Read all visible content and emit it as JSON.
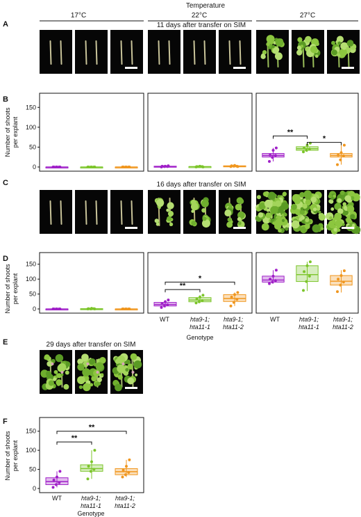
{
  "header": {
    "title": "Temperature",
    "temps": [
      "17°C",
      "22°C",
      "27°C"
    ]
  },
  "panels": {
    "A": "A",
    "B": "B",
    "C": "C",
    "D": "D",
    "E": "E",
    "F": "F"
  },
  "rows": {
    "A_title": "11 days after transfer on SIM",
    "C_title": "16 days after transfer on SIM",
    "E_title": "29 days after transfer on SIM"
  },
  "axis": {
    "ylabel_1": "Number of shoots",
    "ylabel_2": "per explant",
    "yticks": [
      "0",
      "50",
      "100",
      "150"
    ],
    "xlabel": "Genotype",
    "genotypes": [
      {
        "l1": "WT",
        "l2": ""
      },
      {
        "l1": "hta9-1;",
        "l2": "hta11-1"
      },
      {
        "l1": "hta9-1;",
        "l2": "hta11-2"
      }
    ]
  },
  "significance": {
    "double": "**",
    "single": "*"
  },
  "colors": {
    "WT": "#a020c8",
    "hta11_1": "#7cc52a",
    "hta11_2": "#f0961e"
  },
  "chart_data": [
    {
      "type": "box",
      "panel": "B",
      "temperature": "17°C",
      "categories": [
        "WT",
        "hta9-1; hta11-1",
        "hta9-1; hta11-2"
      ],
      "ylabel": "Number of shoots per explant",
      "ylim": [
        0,
        175
      ],
      "boxes": [
        {
          "min": 0,
          "q1": 0,
          "median": 0,
          "q3": 0,
          "max": 0,
          "points": [
            0,
            0,
            0,
            0,
            0,
            0
          ]
        },
        {
          "min": 0,
          "q1": 0,
          "median": 0,
          "q3": 0,
          "max": 0,
          "points": [
            0,
            0,
            0,
            0,
            0,
            0
          ]
        },
        {
          "min": 0,
          "q1": 0,
          "median": 0,
          "q3": 0,
          "max": 0,
          "points": [
            0,
            0,
            0,
            0,
            0,
            0
          ]
        }
      ],
      "comparisons": []
    },
    {
      "type": "box",
      "panel": "B",
      "temperature": "22°C",
      "categories": [
        "WT",
        "hta9-1; hta11-1",
        "hta9-1; hta11-2"
      ],
      "ylim": [
        0,
        175
      ],
      "boxes": [
        {
          "min": 0,
          "q1": 0,
          "median": 1,
          "q3": 2,
          "max": 3,
          "points": [
            0,
            1,
            1,
            2,
            2,
            3
          ]
        },
        {
          "min": 0,
          "q1": 0,
          "median": 1,
          "q3": 1,
          "max": 2,
          "points": [
            0,
            1,
            1,
            1,
            2,
            0
          ]
        },
        {
          "min": 0,
          "q1": 1,
          "median": 2,
          "q3": 3,
          "max": 4,
          "points": [
            1,
            2,
            2,
            3,
            4,
            1
          ]
        }
      ],
      "comparisons": []
    },
    {
      "type": "box",
      "panel": "B",
      "temperature": "27°C",
      "categories": [
        "WT",
        "hta9-1; hta11-1",
        "hta9-1; hta11-2"
      ],
      "ylim": [
        0,
        175
      ],
      "boxes": [
        {
          "min": 14,
          "q1": 25,
          "median": 29,
          "q3": 34,
          "max": 48,
          "points": [
            14,
            24,
            29,
            30,
            42,
            48
          ]
        },
        {
          "min": 38,
          "q1": 42,
          "median": 46,
          "q3": 51,
          "max": 60,
          "points": [
            38,
            42,
            45,
            48,
            55,
            60
          ]
        },
        {
          "min": 6,
          "q1": 25,
          "median": 29,
          "q3": 34,
          "max": 55,
          "points": [
            6,
            18,
            28,
            30,
            36,
            55
          ]
        }
      ],
      "comparisons": [
        {
          "from": 0,
          "to": 1,
          "y": 78,
          "label": "**"
        },
        {
          "from": 1,
          "to": 2,
          "y": 62,
          "label": "*"
        }
      ]
    },
    {
      "type": "box",
      "panel": "D",
      "temperature": "17°C",
      "categories": [
        "WT",
        "hta9-1; hta11-1",
        "hta9-1; hta11-2"
      ],
      "ylim": [
        0,
        175
      ],
      "boxes": [
        {
          "min": 0,
          "q1": 0,
          "median": 0,
          "q3": 0,
          "max": 0,
          "points": [
            0,
            0,
            0,
            0,
            0,
            0
          ]
        },
        {
          "min": 0,
          "q1": 0,
          "median": 0,
          "q3": 1,
          "max": 2,
          "points": [
            0,
            0,
            1,
            1,
            2,
            0
          ]
        },
        {
          "min": 0,
          "q1": 0,
          "median": 0,
          "q3": 0,
          "max": 0,
          "points": [
            0,
            0,
            0,
            0,
            0,
            0
          ]
        }
      ],
      "comparisons": []
    },
    {
      "type": "box",
      "panel": "D",
      "temperature": "22°C",
      "categories": [
        "WT",
        "hta9-1; hta11-1",
        "hta9-1; hta11-2"
      ],
      "ylim": [
        0,
        175
      ],
      "boxes": [
        {
          "min": 5,
          "q1": 10,
          "median": 15,
          "q3": 22,
          "max": 30,
          "points": [
            5,
            10,
            14,
            18,
            24,
            30
          ]
        },
        {
          "min": 20,
          "q1": 24,
          "median": 30,
          "q3": 38,
          "max": 46,
          "points": [
            20,
            24,
            28,
            34,
            40,
            46
          ]
        },
        {
          "min": 10,
          "q1": 25,
          "median": 35,
          "q3": 48,
          "max": 55,
          "points": [
            10,
            22,
            32,
            40,
            48,
            55
          ]
        }
      ],
      "comparisons": [
        {
          "from": 0,
          "to": 2,
          "y": 90,
          "label": "*"
        },
        {
          "from": 0,
          "to": 1,
          "y": 65,
          "label": "**"
        }
      ]
    },
    {
      "type": "box",
      "panel": "D",
      "temperature": "27°C",
      "categories": [
        "WT",
        "hta9-1; hta11-1",
        "hta9-1; hta11-2"
      ],
      "ylim": [
        0,
        175
      ],
      "boxes": [
        {
          "min": 85,
          "q1": 90,
          "median": 97,
          "q3": 110,
          "max": 130,
          "points": [
            85,
            90,
            95,
            100,
            110,
            130
          ]
        },
        {
          "min": 60,
          "q1": 92,
          "median": 115,
          "q3": 145,
          "max": 158,
          "points": [
            62,
            92,
            110,
            125,
            145,
            158
          ]
        },
        {
          "min": 55,
          "q1": 80,
          "median": 93,
          "q3": 112,
          "max": 130,
          "points": [
            58,
            80,
            90,
            100,
            112,
            128
          ]
        }
      ],
      "comparisons": []
    },
    {
      "type": "box",
      "panel": "F",
      "temperature": "",
      "categories": [
        "WT",
        "hta9-1; hta11-1",
        "hta9-1; hta11-2"
      ],
      "xlabel": "Genotype",
      "ylim": [
        0,
        175
      ],
      "boxes": [
        {
          "min": 3,
          "q1": 10,
          "median": 18,
          "q3": 28,
          "max": 45,
          "points": [
            3,
            10,
            15,
            22,
            30,
            45
          ]
        },
        {
          "min": 25,
          "q1": 45,
          "median": 52,
          "q3": 62,
          "max": 100,
          "points": [
            25,
            45,
            50,
            58,
            70,
            100
          ]
        },
        {
          "min": 30,
          "q1": 36,
          "median": 44,
          "q3": 52,
          "max": 75,
          "points": [
            30,
            36,
            42,
            48,
            58,
            75
          ]
        }
      ],
      "comparisons": [
        {
          "from": 0,
          "to": 2,
          "y": 150,
          "label": "**"
        },
        {
          "from": 0,
          "to": 1,
          "y": 122,
          "label": "**"
        }
      ]
    }
  ]
}
